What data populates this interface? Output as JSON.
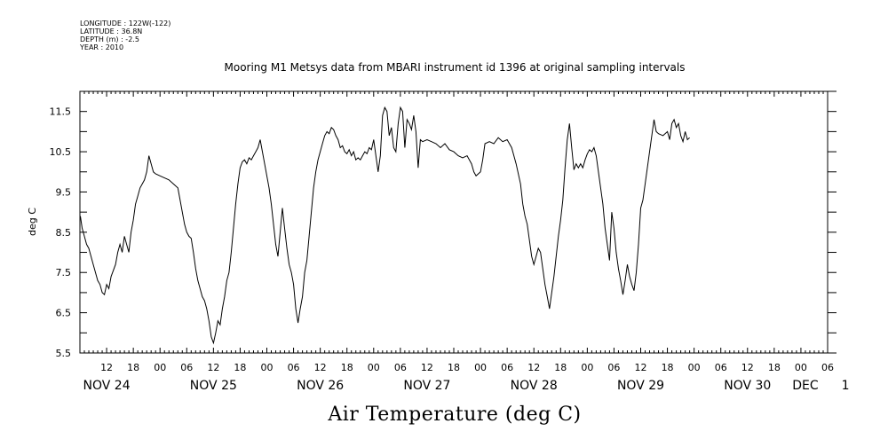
{
  "meta": {
    "longitude": "LONGITUDE : 122W(-122)",
    "latitude": "LATITUDE : 36.8N",
    "depth": "DEPTH (m) : -2.5",
    "year": "YEAR : 2010"
  },
  "chart_data": {
    "type": "line",
    "title": "Mooring M1 Metsys data from MBARI instrument id 1396 at original sampling intervals",
    "ylabel": "deg C",
    "bottom_title": "Air Temperature (deg C)",
    "ylim": [
      5.5,
      12.0
    ],
    "y_ticks": [
      "11.5",
      "10.5",
      "9.5",
      "8.5",
      "7.5",
      "6.5",
      "5.5"
    ],
    "x_range_hours": [
      6,
      174
    ],
    "hour_labels": [
      {
        "h": 12,
        "label": "12"
      },
      {
        "h": 18,
        "label": "18"
      },
      {
        "h": 24,
        "label": "00"
      },
      {
        "h": 30,
        "label": "06"
      },
      {
        "h": 36,
        "label": "12"
      },
      {
        "h": 42,
        "label": "18"
      },
      {
        "h": 48,
        "label": "00"
      },
      {
        "h": 54,
        "label": "06"
      },
      {
        "h": 60,
        "label": "12"
      },
      {
        "h": 66,
        "label": "18"
      },
      {
        "h": 72,
        "label": "00"
      },
      {
        "h": 78,
        "label": "06"
      },
      {
        "h": 84,
        "label": "12"
      },
      {
        "h": 90,
        "label": "18"
      },
      {
        "h": 96,
        "label": "00"
      },
      {
        "h": 102,
        "label": "06"
      },
      {
        "h": 108,
        "label": "12"
      },
      {
        "h": 114,
        "label": "18"
      },
      {
        "h": 120,
        "label": "00"
      },
      {
        "h": 126,
        "label": "06"
      },
      {
        "h": 132,
        "label": "12"
      },
      {
        "h": 138,
        "label": "18"
      },
      {
        "h": 144,
        "label": "00"
      },
      {
        "h": 150,
        "label": "06"
      },
      {
        "h": 156,
        "label": "12"
      },
      {
        "h": 162,
        "label": "18"
      },
      {
        "h": 168,
        "label": "00"
      },
      {
        "h": 174,
        "label": "06"
      }
    ],
    "day_labels": [
      {
        "h": 12,
        "label": "NOV 24"
      },
      {
        "h": 36,
        "label": "NOV 25"
      },
      {
        "h": 60,
        "label": "NOV 26"
      },
      {
        "h": 84,
        "label": "NOV 27"
      },
      {
        "h": 108,
        "label": "NOV 28"
      },
      {
        "h": 132,
        "label": "NOV 29"
      },
      {
        "h": 156,
        "label": "NOV 30"
      },
      {
        "h": 169,
        "label": "DEC"
      },
      {
        "h": 178,
        "label": "1"
      }
    ],
    "series": [
      {
        "values": [
          [
            6.1,
            8.9
          ],
          [
            6.5,
            8.6
          ],
          [
            7.0,
            8.4
          ],
          [
            7.5,
            8.2
          ],
          [
            8.0,
            8.1
          ],
          [
            8.5,
            7.9
          ],
          [
            9.0,
            7.7
          ],
          [
            9.5,
            7.5
          ],
          [
            10.0,
            7.3
          ],
          [
            10.5,
            7.2
          ],
          [
            11.0,
            7.0
          ],
          [
            11.5,
            6.95
          ],
          [
            12.0,
            7.2
          ],
          [
            12.5,
            7.1
          ],
          [
            13.0,
            7.4
          ],
          [
            14.0,
            7.7
          ],
          [
            14.5,
            8.0
          ],
          [
            15.0,
            8.2
          ],
          [
            15.5,
            8.0
          ],
          [
            16.0,
            8.4
          ],
          [
            16.5,
            8.2
          ],
          [
            17.0,
            8.0
          ],
          [
            17.5,
            8.5
          ],
          [
            18.0,
            8.8
          ],
          [
            18.5,
            9.2
          ],
          [
            19.0,
            9.4
          ],
          [
            19.5,
            9.6
          ],
          [
            20.0,
            9.7
          ],
          [
            20.5,
            9.8
          ],
          [
            21.0,
            10.0
          ],
          [
            21.5,
            10.4
          ],
          [
            22.0,
            10.2
          ],
          [
            22.5,
            10.0
          ],
          [
            23.0,
            9.95
          ],
          [
            24.0,
            9.9
          ],
          [
            25.0,
            9.85
          ],
          [
            26.0,
            9.8
          ],
          [
            27.0,
            9.7
          ],
          [
            28.0,
            9.6
          ],
          [
            28.5,
            9.3
          ],
          [
            29.0,
            9.0
          ],
          [
            29.5,
            8.7
          ],
          [
            30.0,
            8.5
          ],
          [
            30.5,
            8.4
          ],
          [
            31.0,
            8.35
          ],
          [
            31.5,
            8.0
          ],
          [
            32.0,
            7.6
          ],
          [
            32.5,
            7.3
          ],
          [
            33.0,
            7.1
          ],
          [
            33.5,
            6.9
          ],
          [
            34.0,
            6.8
          ],
          [
            34.5,
            6.6
          ],
          [
            35.0,
            6.3
          ],
          [
            35.5,
            5.9
          ],
          [
            36.0,
            5.75
          ],
          [
            36.5,
            6.0
          ],
          [
            37.0,
            6.3
          ],
          [
            37.5,
            6.2
          ],
          [
            38.0,
            6.6
          ],
          [
            38.5,
            6.9
          ],
          [
            39.0,
            7.3
          ],
          [
            39.5,
            7.5
          ],
          [
            40.0,
            8.0
          ],
          [
            40.5,
            8.6
          ],
          [
            41.0,
            9.2
          ],
          [
            41.5,
            9.7
          ],
          [
            42.0,
            10.1
          ],
          [
            42.5,
            10.25
          ],
          [
            43.0,
            10.3
          ],
          [
            43.5,
            10.2
          ],
          [
            44.0,
            10.35
          ],
          [
            44.5,
            10.3
          ],
          [
            45.0,
            10.4
          ],
          [
            45.5,
            10.5
          ],
          [
            46.0,
            10.6
          ],
          [
            46.5,
            10.8
          ],
          [
            47.0,
            10.5
          ],
          [
            47.5,
            10.2
          ],
          [
            48.0,
            9.9
          ],
          [
            48.5,
            9.6
          ],
          [
            49.0,
            9.2
          ],
          [
            49.5,
            8.7
          ],
          [
            50.0,
            8.2
          ],
          [
            50.5,
            7.9
          ],
          [
            51.0,
            8.5
          ],
          [
            51.5,
            9.1
          ],
          [
            52.0,
            8.6
          ],
          [
            52.5,
            8.1
          ],
          [
            53.0,
            7.7
          ],
          [
            53.5,
            7.5
          ],
          [
            54.0,
            7.2
          ],
          [
            54.5,
            6.6
          ],
          [
            55.0,
            6.25
          ],
          [
            55.5,
            6.6
          ],
          [
            56.0,
            6.9
          ],
          [
            56.5,
            7.5
          ],
          [
            57.0,
            7.8
          ],
          [
            57.5,
            8.4
          ],
          [
            58.0,
            9.0
          ],
          [
            58.5,
            9.6
          ],
          [
            59.0,
            10.0
          ],
          [
            59.5,
            10.3
          ],
          [
            60.0,
            10.5
          ],
          [
            60.5,
            10.7
          ],
          [
            61.0,
            10.9
          ],
          [
            61.5,
            11.0
          ],
          [
            62.0,
            10.95
          ],
          [
            62.5,
            11.1
          ],
          [
            63.0,
            11.05
          ],
          [
            63.5,
            10.9
          ],
          [
            64.0,
            10.8
          ],
          [
            64.5,
            10.6
          ],
          [
            65.0,
            10.65
          ],
          [
            65.5,
            10.5
          ],
          [
            66.0,
            10.45
          ],
          [
            66.5,
            10.55
          ],
          [
            67.0,
            10.4
          ],
          [
            67.5,
            10.5
          ],
          [
            68.0,
            10.3
          ],
          [
            68.5,
            10.35
          ],
          [
            69.0,
            10.3
          ],
          [
            69.5,
            10.4
          ],
          [
            70.0,
            10.5
          ],
          [
            70.5,
            10.45
          ],
          [
            71.0,
            10.6
          ],
          [
            71.5,
            10.55
          ],
          [
            72.0,
            10.8
          ],
          [
            72.5,
            10.4
          ],
          [
            73.0,
            10.0
          ],
          [
            73.5,
            10.4
          ],
          [
            74.0,
            11.4
          ],
          [
            74.5,
            11.6
          ],
          [
            75.0,
            11.5
          ],
          [
            75.5,
            10.9
          ],
          [
            76.0,
            11.1
          ],
          [
            76.5,
            10.6
          ],
          [
            77.0,
            10.5
          ],
          [
            77.5,
            11.2
          ],
          [
            78.0,
            11.6
          ],
          [
            78.5,
            11.5
          ],
          [
            79.0,
            10.6
          ],
          [
            79.5,
            11.3
          ],
          [
            80.0,
            11.2
          ],
          [
            80.5,
            11.05
          ],
          [
            81.0,
            11.4
          ],
          [
            81.5,
            11.0
          ],
          [
            82.0,
            10.1
          ],
          [
            82.5,
            10.8
          ],
          [
            83.0,
            10.75
          ],
          [
            84.0,
            10.8
          ],
          [
            85.0,
            10.75
          ],
          [
            86.0,
            10.7
          ],
          [
            87.0,
            10.6
          ],
          [
            88.0,
            10.7
          ],
          [
            89.0,
            10.55
          ],
          [
            90.0,
            10.5
          ],
          [
            91.0,
            10.4
          ],
          [
            92.0,
            10.35
          ],
          [
            93.0,
            10.4
          ],
          [
            94.0,
            10.2
          ],
          [
            94.5,
            10.0
          ],
          [
            95.0,
            9.9
          ],
          [
            96.0,
            10.0
          ],
          [
            96.5,
            10.3
          ],
          [
            97.0,
            10.7
          ],
          [
            98.0,
            10.75
          ],
          [
            99.0,
            10.7
          ],
          [
            100.0,
            10.85
          ],
          [
            101.0,
            10.75
          ],
          [
            102.0,
            10.8
          ],
          [
            103.0,
            10.6
          ],
          [
            104.0,
            10.2
          ],
          [
            105.0,
            9.7
          ],
          [
            105.5,
            9.2
          ],
          [
            106.0,
            8.9
          ],
          [
            106.5,
            8.7
          ],
          [
            107.0,
            8.3
          ],
          [
            107.5,
            7.9
          ],
          [
            108.0,
            7.7
          ],
          [
            108.5,
            7.9
          ],
          [
            109.0,
            8.1
          ],
          [
            109.5,
            8.0
          ],
          [
            110.0,
            7.6
          ],
          [
            110.5,
            7.2
          ],
          [
            111.0,
            6.9
          ],
          [
            111.5,
            6.6
          ],
          [
            112.0,
            7.0
          ],
          [
            112.5,
            7.4
          ],
          [
            113.0,
            7.9
          ],
          [
            113.5,
            8.4
          ],
          [
            114.0,
            8.8
          ],
          [
            114.5,
            9.3
          ],
          [
            115.0,
            10.1
          ],
          [
            115.5,
            10.8
          ],
          [
            116.0,
            11.2
          ],
          [
            116.5,
            10.6
          ],
          [
            117.0,
            10.05
          ],
          [
            117.5,
            10.2
          ],
          [
            118.0,
            10.1
          ],
          [
            118.5,
            10.2
          ],
          [
            119.0,
            10.1
          ],
          [
            119.5,
            10.3
          ],
          [
            120.0,
            10.45
          ],
          [
            120.5,
            10.55
          ],
          [
            121.0,
            10.5
          ],
          [
            121.5,
            10.6
          ],
          [
            122.0,
            10.4
          ],
          [
            122.5,
            10.0
          ],
          [
            123.0,
            9.6
          ],
          [
            123.5,
            9.2
          ],
          [
            124.0,
            8.6
          ],
          [
            124.5,
            8.2
          ],
          [
            125.0,
            7.8
          ],
          [
            125.5,
            9.0
          ],
          [
            126.0,
            8.6
          ],
          [
            126.5,
            8.0
          ],
          [
            127.0,
            7.6
          ],
          [
            127.5,
            7.3
          ],
          [
            128.0,
            6.95
          ],
          [
            128.5,
            7.3
          ],
          [
            129.0,
            7.7
          ],
          [
            129.5,
            7.4
          ],
          [
            130.0,
            7.2
          ],
          [
            130.5,
            7.05
          ],
          [
            131.0,
            7.5
          ],
          [
            131.5,
            8.2
          ],
          [
            132.0,
            9.1
          ],
          [
            132.5,
            9.3
          ],
          [
            133.0,
            9.7
          ],
          [
            133.5,
            10.1
          ],
          [
            134.0,
            10.5
          ],
          [
            134.5,
            10.9
          ],
          [
            135.0,
            11.3
          ],
          [
            135.5,
            11.0
          ],
          [
            136.0,
            10.95
          ],
          [
            137.0,
            10.9
          ],
          [
            138.0,
            11.0
          ],
          [
            138.5,
            10.8
          ],
          [
            139.0,
            11.2
          ],
          [
            139.5,
            11.3
          ],
          [
            140.0,
            11.1
          ],
          [
            140.5,
            11.2
          ],
          [
            141.0,
            10.9
          ],
          [
            141.5,
            10.75
          ],
          [
            142.0,
            11.0
          ],
          [
            142.5,
            10.8
          ],
          [
            143.0,
            10.85
          ]
        ]
      }
    ]
  }
}
